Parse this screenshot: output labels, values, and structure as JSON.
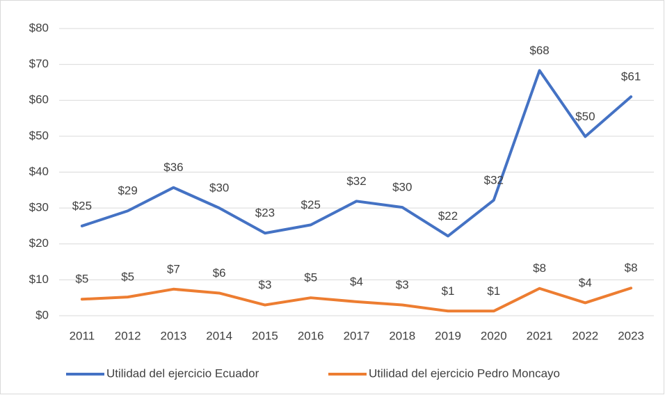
{
  "chart_data": {
    "type": "line",
    "categories": [
      "2011",
      "2012",
      "2013",
      "2014",
      "2015",
      "2016",
      "2017",
      "2018",
      "2019",
      "2020",
      "2021",
      "2022",
      "2023"
    ],
    "series": [
      {
        "name": "Utilidad del ejercicio Ecuador",
        "color": "#4472c4",
        "values": [
          25,
          29.2,
          35.7,
          30,
          23,
          25.3,
          31.9,
          30.2,
          22.2,
          32.2,
          68.3,
          49.9,
          61
        ],
        "value_labels": [
          "$25",
          "$29",
          "$36",
          "$30",
          "$23",
          "$25",
          "$32",
          "$30",
          "$22",
          "$32",
          "$68",
          "$50",
          "$61"
        ]
      },
      {
        "name": "Utilidad del ejercicio Pedro Moncayo",
        "color": "#ed7d31",
        "values": [
          4.6,
          5.2,
          7.4,
          6.3,
          3.0,
          5.0,
          3.9,
          3.0,
          1.3,
          1.3,
          7.6,
          3.6,
          7.7
        ],
        "value_labels": [
          "$5",
          "$5",
          "$7",
          "$6",
          "$3",
          "$5",
          "$4",
          "$3",
          "$1",
          "$1",
          "$8",
          "$4",
          "$8"
        ]
      }
    ],
    "ylim": [
      0,
      80
    ],
    "yticks": [
      {
        "value": 0,
        "label": "$0"
      },
      {
        "value": 10,
        "label": "$10"
      },
      {
        "value": 20,
        "label": "$20"
      },
      {
        "value": 30,
        "label": "$30"
      },
      {
        "value": 40,
        "label": "$40"
      },
      {
        "value": 50,
        "label": "$50"
      },
      {
        "value": 60,
        "label": "$60"
      },
      {
        "value": 70,
        "label": "$70"
      },
      {
        "value": 80,
        "label": "$80"
      }
    ],
    "grid": true,
    "legend": "bottom"
  }
}
